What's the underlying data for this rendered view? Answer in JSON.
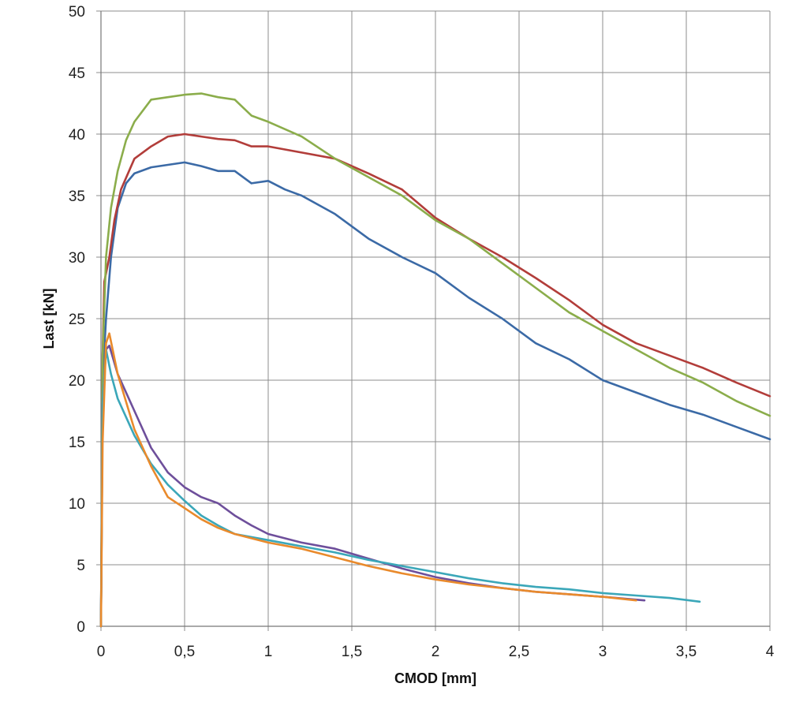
{
  "chart_data": {
    "type": "line",
    "title": "",
    "xlabel": "CMOD [mm]",
    "ylabel": "Last [kN]",
    "xlim": [
      0,
      4
    ],
    "ylim": [
      0,
      50
    ],
    "grid": true,
    "legend": "none",
    "x_ticks": [
      "0",
      "0,5",
      "1",
      "1,5",
      "2",
      "2,5",
      "3",
      "3,5",
      "4"
    ],
    "x_tick_values": [
      0,
      0.5,
      1,
      1.5,
      2,
      2.5,
      3,
      3.5,
      4
    ],
    "y_ticks": [
      "0",
      "5",
      "10",
      "15",
      "20",
      "25",
      "30",
      "35",
      "40",
      "45",
      "50"
    ],
    "y_tick_values": [
      0,
      5,
      10,
      15,
      20,
      25,
      30,
      35,
      40,
      45,
      50
    ],
    "series": [
      {
        "name": "blue",
        "color": "#3b6aa6",
        "x": [
          0,
          0.01,
          0.03,
          0.06,
          0.1,
          0.15,
          0.2,
          0.3,
          0.4,
          0.5,
          0.6,
          0.7,
          0.8,
          0.9,
          1.0,
          1.1,
          1.2,
          1.4,
          1.6,
          1.8,
          2.0,
          2.2,
          2.4,
          2.6,
          2.8,
          3.0,
          3.2,
          3.4,
          3.6,
          3.8,
          4.0
        ],
        "y": [
          0,
          20,
          25,
          30,
          34,
          36,
          36.8,
          37.3,
          37.5,
          37.7,
          37.4,
          37,
          37,
          36,
          36.2,
          35.5,
          35,
          33.5,
          31.5,
          30,
          28.7,
          26.7,
          25,
          23,
          21.7,
          20,
          19,
          18,
          17.2,
          16.2,
          15.2
        ]
      },
      {
        "name": "red",
        "color": "#b23d3a",
        "x": [
          0,
          0.01,
          0.02,
          0.05,
          0.08,
          0.12,
          0.2,
          0.3,
          0.4,
          0.5,
          0.6,
          0.7,
          0.8,
          0.9,
          1.0,
          1.2,
          1.4,
          1.6,
          1.8,
          2.0,
          2.2,
          2.4,
          2.6,
          2.8,
          3.0,
          3.2,
          3.4,
          3.6,
          3.8,
          4.0
        ],
        "y": [
          0,
          22,
          28,
          30,
          33,
          35.5,
          38,
          39,
          39.8,
          40,
          39.8,
          39.6,
          39.5,
          39,
          39,
          38.5,
          38,
          36.8,
          35.5,
          33.2,
          31.5,
          30,
          28.3,
          26.5,
          24.5,
          23,
          22,
          21,
          19.8,
          18.7
        ]
      },
      {
        "name": "green",
        "color": "#8bad4b",
        "x": [
          0,
          0.01,
          0.03,
          0.06,
          0.1,
          0.15,
          0.2,
          0.3,
          0.4,
          0.5,
          0.6,
          0.7,
          0.8,
          0.9,
          1.0,
          1.2,
          1.4,
          1.6,
          1.8,
          2.0,
          2.2,
          2.4,
          2.6,
          2.8,
          3.0,
          3.2,
          3.4,
          3.6,
          3.8,
          4.0
        ],
        "y": [
          0,
          22,
          30,
          34,
          37,
          39.5,
          41,
          42.8,
          43,
          43.2,
          43.3,
          43,
          42.8,
          41.5,
          41,
          39.8,
          38,
          36.5,
          35,
          33,
          31.5,
          29.5,
          27.5,
          25.5,
          24,
          22.5,
          21,
          19.8,
          18.3,
          17.1
        ]
      },
      {
        "name": "purple",
        "color": "#6e4f9b",
        "x": [
          0,
          0.01,
          0.03,
          0.05,
          0.1,
          0.2,
          0.3,
          0.4,
          0.5,
          0.6,
          0.7,
          0.8,
          0.9,
          1.0,
          1.2,
          1.4,
          1.6,
          1.8,
          2.0,
          2.2,
          2.4,
          2.6,
          2.8,
          3.0,
          3.25
        ],
        "y": [
          0,
          18,
          22.5,
          22.8,
          20.5,
          17.5,
          14.5,
          12.5,
          11.3,
          10.5,
          10,
          9,
          8.2,
          7.5,
          6.8,
          6.3,
          5.5,
          4.7,
          4,
          3.5,
          3.1,
          2.8,
          2.6,
          2.4,
          2.1
        ]
      },
      {
        "name": "cyan",
        "color": "#3ba7b9",
        "x": [
          0,
          0.01,
          0.03,
          0.06,
          0.1,
          0.2,
          0.3,
          0.4,
          0.5,
          0.6,
          0.7,
          0.8,
          1.0,
          1.2,
          1.4,
          1.6,
          1.8,
          2.0,
          2.2,
          2.4,
          2.6,
          2.8,
          3.0,
          3.2,
          3.4,
          3.58
        ],
        "y": [
          0,
          18,
          22.5,
          20.5,
          18.5,
          15.5,
          13.2,
          11.5,
          10.2,
          9,
          8.2,
          7.5,
          7,
          6.5,
          6,
          5.4,
          4.9,
          4.4,
          3.9,
          3.5,
          3.2,
          3,
          2.7,
          2.5,
          2.3,
          2.0
        ]
      },
      {
        "name": "orange",
        "color": "#e98a2c",
        "x": [
          0,
          0.01,
          0.03,
          0.05,
          0.1,
          0.2,
          0.3,
          0.4,
          0.5,
          0.6,
          0.7,
          0.8,
          1.0,
          1.2,
          1.4,
          1.6,
          1.8,
          2.0,
          2.2,
          2.4,
          2.6,
          2.8,
          3.0,
          3.2
        ],
        "y": [
          0,
          15,
          23,
          23.8,
          20.5,
          16,
          13,
          10.5,
          9.6,
          8.7,
          8,
          7.5,
          6.8,
          6.3,
          5.6,
          4.9,
          4.3,
          3.8,
          3.4,
          3.1,
          2.8,
          2.6,
          2.4,
          2.1
        ]
      }
    ]
  }
}
